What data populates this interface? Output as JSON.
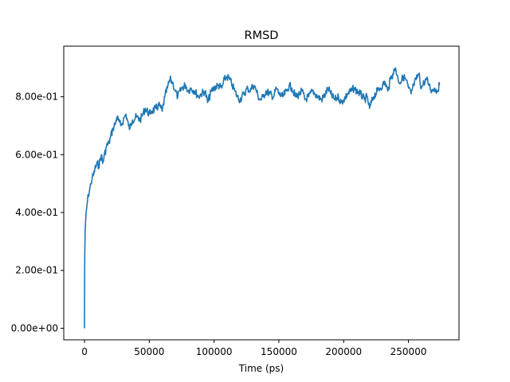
{
  "chart_data": {
    "type": "line",
    "title": "RMSD",
    "xlabel": "Time (ps)",
    "ylabel": "",
    "xlim": [
      -16000,
      289000
    ],
    "ylim": [
      -0.04,
      0.975
    ],
    "x_ticks": [
      0,
      50000,
      100000,
      150000,
      200000,
      250000
    ],
    "x_tick_labels": [
      "0",
      "50000",
      "100000",
      "150000",
      "200000",
      "250000"
    ],
    "y_ticks": [
      0.0,
      0.2,
      0.4,
      0.6,
      0.8
    ],
    "y_tick_labels": [
      "0.00e+00",
      "2.00e-01",
      "4.00e-01",
      "6.00e-01",
      "8.00e-01"
    ],
    "grid": false,
    "legend": "none",
    "series": [
      {
        "color": "#1f77b4",
        "x": [
          0,
          200,
          500,
          1000,
          2000,
          3000,
          4000,
          5000,
          6000,
          7000,
          8000,
          9000,
          10000,
          11000,
          12000,
          13000,
          14000,
          15000,
          17000,
          19000,
          20000,
          22000,
          24000,
          25000,
          26000,
          28000,
          30000,
          32000,
          34000,
          35000,
          37000,
          40000,
          43000,
          45000,
          47000,
          50000,
          52000,
          55000,
          58000,
          60000,
          62000,
          64000,
          66000,
          68000,
          70000,
          72000,
          75000,
          78000,
          80000,
          82000,
          85000,
          88000,
          90000,
          93000,
          95000,
          98000,
          100000,
          103000,
          106000,
          108000,
          110000,
          112000,
          114000,
          116000,
          118000,
          120000,
          123000,
          126000,
          128000,
          130000,
          132000,
          134000,
          136000,
          138000,
          140000,
          143000,
          146000,
          148000,
          150000,
          153000,
          156000,
          158000,
          160000,
          163000,
          166000,
          168000,
          170000,
          173000,
          176000,
          178000,
          180000,
          183000,
          186000,
          188000,
          190000,
          193000,
          196000,
          198000,
          200000,
          203000,
          206000,
          208000,
          210000,
          213000,
          216000,
          218000,
          220000,
          223000,
          226000,
          228000,
          230000,
          232000,
          234000,
          236000,
          238000,
          240000,
          242000,
          244000,
          246000,
          248000,
          250000,
          252000,
          254000,
          256000,
          258000,
          260000,
          262000,
          264000,
          266000,
          268000,
          270000,
          272000,
          274000
        ],
        "y": [
          0.0,
          0.25,
          0.33,
          0.38,
          0.43,
          0.46,
          0.48,
          0.5,
          0.52,
          0.53,
          0.55,
          0.56,
          0.57,
          0.56,
          0.58,
          0.6,
          0.57,
          0.59,
          0.63,
          0.64,
          0.66,
          0.69,
          0.71,
          0.73,
          0.72,
          0.7,
          0.72,
          0.74,
          0.7,
          0.69,
          0.72,
          0.73,
          0.72,
          0.74,
          0.76,
          0.74,
          0.75,
          0.76,
          0.77,
          0.75,
          0.8,
          0.83,
          0.86,
          0.85,
          0.82,
          0.8,
          0.83,
          0.84,
          0.82,
          0.83,
          0.82,
          0.8,
          0.81,
          0.82,
          0.78,
          0.82,
          0.83,
          0.84,
          0.83,
          0.86,
          0.87,
          0.86,
          0.84,
          0.82,
          0.8,
          0.79,
          0.81,
          0.83,
          0.82,
          0.84,
          0.83,
          0.8,
          0.79,
          0.8,
          0.82,
          0.81,
          0.8,
          0.83,
          0.81,
          0.8,
          0.82,
          0.84,
          0.83,
          0.8,
          0.81,
          0.82,
          0.79,
          0.8,
          0.82,
          0.81,
          0.8,
          0.79,
          0.81,
          0.83,
          0.81,
          0.79,
          0.8,
          0.78,
          0.79,
          0.81,
          0.82,
          0.83,
          0.82,
          0.81,
          0.79,
          0.8,
          0.76,
          0.8,
          0.82,
          0.83,
          0.84,
          0.85,
          0.82,
          0.86,
          0.88,
          0.9,
          0.86,
          0.85,
          0.87,
          0.86,
          0.83,
          0.81,
          0.84,
          0.86,
          0.88,
          0.83,
          0.85,
          0.86,
          0.84,
          0.82,
          0.83,
          0.82,
          0.84
        ]
      }
    ]
  }
}
